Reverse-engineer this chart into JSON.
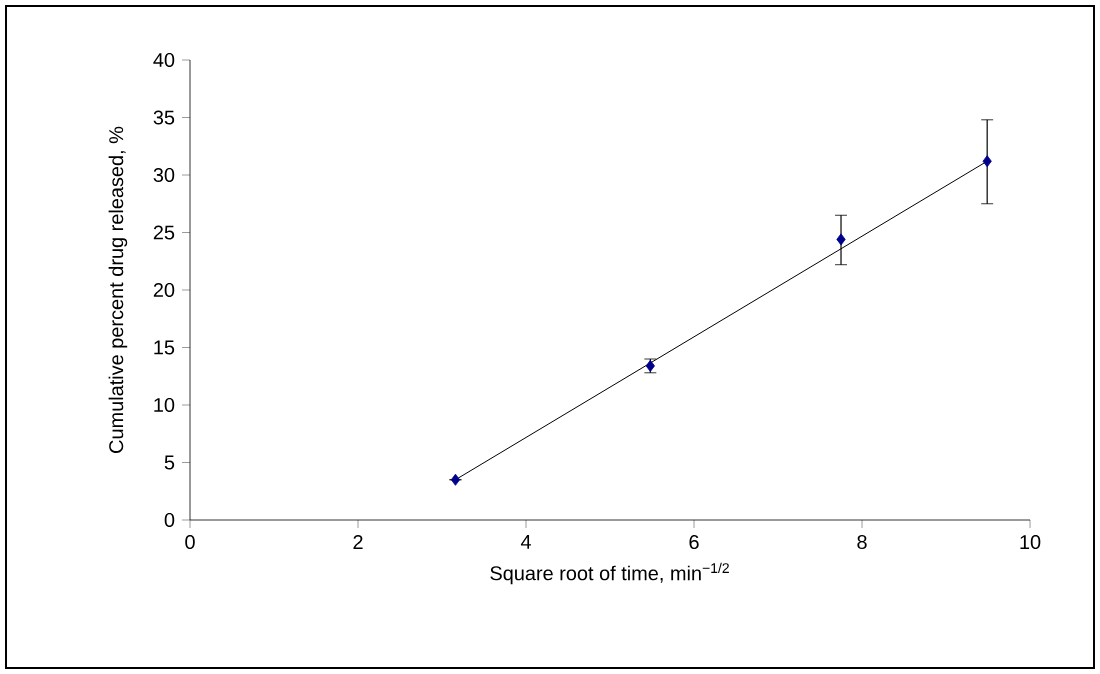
{
  "chart_data": {
    "type": "scatter",
    "xlabel": "Square root of time, min$^{−1/2}$",
    "ylabel": "Cumulative percent drug released, %",
    "xlim": [
      0,
      10
    ],
    "xticks": [
      0,
      2,
      4,
      6,
      8,
      10
    ],
    "ylim": [
      0,
      40
    ],
    "yticks": [
      0,
      5,
      10,
      15,
      20,
      25,
      30,
      35,
      40
    ],
    "grid": false,
    "marker": "diamond",
    "series": [
      {
        "color": "#00008b",
        "x": [
          3.16,
          5.48,
          7.75,
          9.49
        ],
        "values": [
          3.5,
          13.4,
          24.4,
          31.2
        ],
        "errors": [
          null,
          0.6,
          [
            22.2,
            26.5
          ],
          [
            27.5,
            34.8
          ]
        ]
      },
      {
        "type": "line",
        "color": "#000000",
        "x": [
          3.16,
          9.49
        ],
        "values": [
          3.5,
          31.2
        ],
        "marker": "none",
        "line_style": "solid"
      }
    ]
  }
}
